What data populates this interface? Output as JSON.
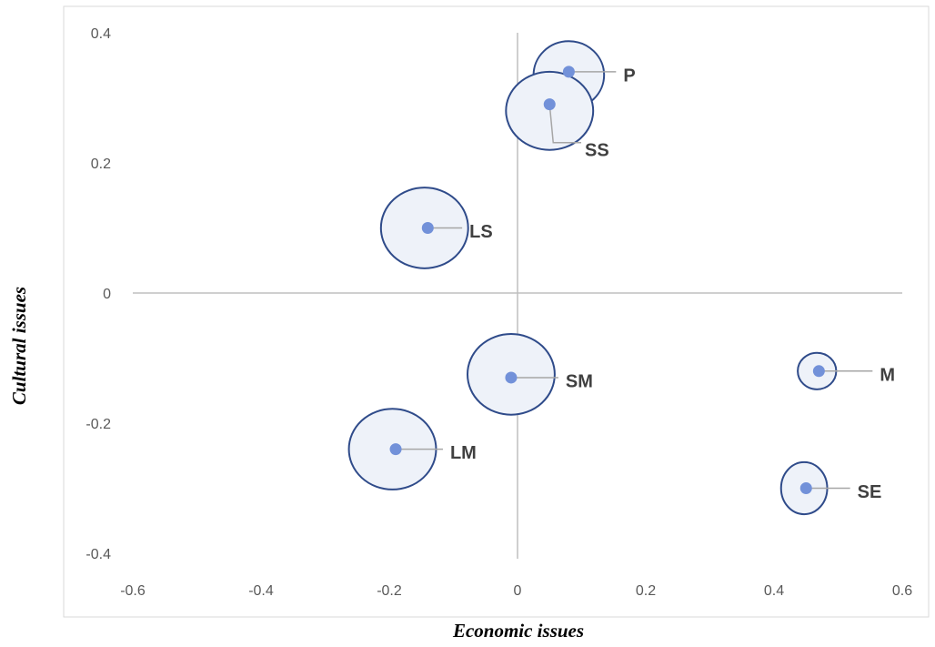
{
  "chart_data": {
    "type": "scatter",
    "xlabel": "Economic issues",
    "ylabel": "Cultural issues",
    "xlim": [
      -0.6,
      0.6
    ],
    "ylim": [
      -0.4,
      0.4
    ],
    "x_ticks": [
      "-0.6",
      "-0.4",
      "-0.2",
      "0",
      "0.2",
      "0.4",
      "0.6"
    ],
    "y_ticks": [
      "0.4",
      "0.2",
      "0",
      "-0.2",
      "-0.4"
    ],
    "grid": false,
    "legend": "none",
    "points": [
      {
        "label": "P",
        "x": 0.08,
        "y": 0.34,
        "ellipse": {
          "cx": 0.08,
          "cy": 0.335,
          "rx": 0.055,
          "ry": 0.052
        },
        "label_pos": {
          "x": 0.165,
          "y": 0.335
        }
      },
      {
        "label": "SS",
        "x": 0.05,
        "y": 0.29,
        "ellipse": {
          "cx": 0.05,
          "cy": 0.28,
          "rx": 0.068,
          "ry": 0.06
        },
        "label_pos": {
          "x": 0.105,
          "y": 0.22
        }
      },
      {
        "label": "LS",
        "x": -0.14,
        "y": 0.1,
        "ellipse": {
          "cx": -0.145,
          "cy": 0.1,
          "rx": 0.068,
          "ry": 0.062
        },
        "label_pos": {
          "x": -0.075,
          "y": 0.095
        }
      },
      {
        "label": "SM",
        "x": -0.01,
        "y": -0.13,
        "ellipse": {
          "cx": -0.01,
          "cy": -0.125,
          "rx": 0.068,
          "ry": 0.062
        },
        "label_pos": {
          "x": 0.075,
          "y": -0.135
        }
      },
      {
        "label": "LM",
        "x": -0.19,
        "y": -0.24,
        "ellipse": {
          "cx": -0.195,
          "cy": -0.24,
          "rx": 0.068,
          "ry": 0.062
        },
        "label_pos": {
          "x": -0.105,
          "y": -0.245
        }
      },
      {
        "label": "M",
        "x": 0.47,
        "y": -0.12,
        "ellipse": {
          "cx": 0.467,
          "cy": -0.12,
          "rx": 0.03,
          "ry": 0.028
        },
        "label_pos": {
          "x": 0.565,
          "y": -0.125
        }
      },
      {
        "label": "SE",
        "x": 0.45,
        "y": -0.3,
        "ellipse": {
          "cx": 0.447,
          "cy": -0.3,
          "rx": 0.036,
          "ry": 0.04
        },
        "label_pos": {
          "x": 0.53,
          "y": -0.305
        }
      }
    ],
    "colors": {
      "point": "#7291d9",
      "bubble_fill": "#eef2f9",
      "bubble_stroke": "#2f4b8a",
      "leader": "#a6a6a6",
      "axis": "#bfbfbf",
      "frame": "#d9d9d9"
    }
  }
}
